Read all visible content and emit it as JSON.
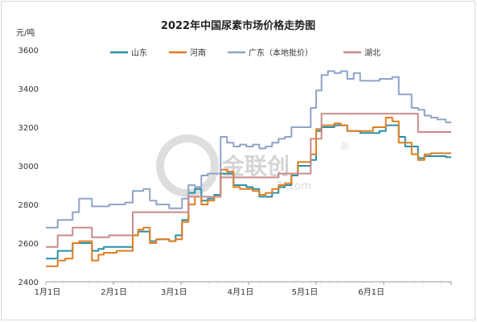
{
  "chart_data": {
    "type": "line",
    "title": "2022年中国尿素市场价格走势图",
    "ylabel": "元/吨",
    "xlabel": "",
    "ylim": [
      2400,
      3600
    ],
    "yticks": [
      2400,
      2600,
      2800,
      3000,
      3200,
      3400,
      3600
    ],
    "xlim": [
      1,
      190
    ],
    "xticks": [
      {
        "label": "1月1日",
        "day": 1
      },
      {
        "label": "2月1日",
        "day": 32
      },
      {
        "label": "3月1日",
        "day": 60
      },
      {
        "label": "4月1日",
        "day": 91
      },
      {
        "label": "5月1日",
        "day": 121
      },
      {
        "label": "6月1日",
        "day": 152
      }
    ],
    "grid": false,
    "legend_position": "top",
    "watermark": {
      "brand": "金联创",
      "site": "3i.com",
      "mark": "®"
    },
    "series": [
      {
        "name": "山东",
        "color": "#2b8fa8",
        "x": [
          1,
          5,
          8,
          12,
          15,
          18,
          21,
          24,
          27,
          29,
          32,
          36,
          40,
          43,
          45,
          48,
          51,
          54,
          57,
          60,
          63,
          66,
          69,
          72,
          75,
          78,
          81,
          84,
          87,
          90,
          93,
          96,
          99,
          102,
          105,
          108,
          111,
          114,
          117,
          120,
          123,
          126,
          128,
          131,
          134,
          137,
          140,
          143,
          146,
          149,
          152,
          155,
          158,
          161,
          164,
          167,
          170,
          173,
          176,
          179,
          182,
          185,
          190
        ],
        "y": [
          2520,
          2520,
          2560,
          2560,
          2600,
          2600,
          2600,
          2560,
          2570,
          2580,
          2580,
          2580,
          2580,
          2640,
          2660,
          2660,
          2610,
          2620,
          2620,
          2610,
          2640,
          2720,
          2860,
          2880,
          2820,
          2830,
          2850,
          2960,
          2960,
          2900,
          2900,
          2890,
          2880,
          2840,
          2840,
          2860,
          2890,
          2900,
          2950,
          3000,
          3000,
          3030,
          3180,
          3200,
          3200,
          3210,
          3210,
          3180,
          3180,
          3170,
          3170,
          3170,
          3180,
          3210,
          3210,
          3150,
          3100,
          3100,
          3040,
          3050,
          3050,
          3050,
          3045
        ]
      },
      {
        "name": "河南",
        "color": "#e07d1f",
        "x": [
          1,
          5,
          8,
          12,
          15,
          18,
          21,
          24,
          27,
          29,
          32,
          36,
          40,
          43,
          45,
          48,
          51,
          54,
          57,
          60,
          63,
          66,
          69,
          72,
          75,
          78,
          81,
          84,
          87,
          90,
          93,
          96,
          99,
          102,
          105,
          108,
          111,
          114,
          117,
          120,
          123,
          126,
          128,
          131,
          134,
          137,
          140,
          143,
          146,
          149,
          152,
          155,
          158,
          161,
          164,
          167,
          170,
          173,
          176,
          179,
          182,
          185,
          190
        ],
        "y": [
          2480,
          2480,
          2510,
          2520,
          2600,
          2610,
          2610,
          2510,
          2540,
          2550,
          2550,
          2560,
          2560,
          2640,
          2670,
          2680,
          2600,
          2620,
          2620,
          2610,
          2620,
          2710,
          2800,
          2840,
          2800,
          2820,
          2840,
          2980,
          2970,
          2890,
          2880,
          2880,
          2870,
          2850,
          2860,
          2880,
          2900,
          2910,
          2960,
          3020,
          3020,
          3060,
          3190,
          3210,
          3210,
          3220,
          3210,
          3180,
          3180,
          3180,
          3180,
          3200,
          3200,
          3250,
          3230,
          3120,
          3120,
          3060,
          3030,
          3060,
          3065,
          3065,
          3065
        ]
      },
      {
        "name": "广东（本地批价）",
        "color": "#8fa3c8",
        "x": [
          1,
          5,
          8,
          12,
          15,
          18,
          21,
          24,
          27,
          29,
          32,
          36,
          40,
          43,
          45,
          48,
          51,
          54,
          57,
          60,
          63,
          66,
          69,
          72,
          75,
          78,
          81,
          84,
          87,
          90,
          93,
          96,
          99,
          102,
          105,
          108,
          111,
          114,
          117,
          120,
          123,
          126,
          128,
          131,
          134,
          137,
          140,
          143,
          146,
          149,
          152,
          155,
          158,
          161,
          164,
          167,
          170,
          173,
          176,
          179,
          182,
          185,
          190
        ],
        "y": [
          2680,
          2680,
          2720,
          2720,
          2760,
          2830,
          2830,
          2790,
          2790,
          2790,
          2800,
          2800,
          2810,
          2870,
          2870,
          2880,
          2820,
          2800,
          2800,
          2780,
          2780,
          2830,
          2900,
          2890,
          2950,
          2960,
          2960,
          3150,
          3120,
          3100,
          3110,
          3100,
          3110,
          3090,
          3100,
          3120,
          3140,
          3150,
          3200,
          3200,
          3200,
          3300,
          3390,
          3470,
          3490,
          3480,
          3490,
          3450,
          3480,
          3440,
          3440,
          3440,
          3450,
          3450,
          3460,
          3370,
          3370,
          3300,
          3290,
          3260,
          3250,
          3240,
          3225
        ]
      },
      {
        "name": "湖北",
        "color": "#c98a8a",
        "x": [
          1,
          5,
          8,
          12,
          15,
          18,
          21,
          24,
          27,
          29,
          32,
          36,
          40,
          43,
          45,
          48,
          51,
          54,
          57,
          60,
          63,
          66,
          69,
          72,
          75,
          78,
          81,
          84,
          87,
          90,
          93,
          96,
          99,
          102,
          105,
          108,
          111,
          114,
          117,
          120,
          123,
          126,
          128,
          131,
          134,
          137,
          140,
          143,
          146,
          149,
          152,
          155,
          158,
          161,
          164,
          167,
          170,
          173,
          176,
          179,
          182,
          185,
          190
        ],
        "y": [
          2580,
          2580,
          2640,
          2640,
          2680,
          2680,
          2680,
          2630,
          2630,
          2630,
          2640,
          2640,
          2640,
          2760,
          2760,
          2760,
          2760,
          2760,
          2760,
          2760,
          2760,
          2760,
          2840,
          2840,
          2840,
          2840,
          2840,
          2940,
          2940,
          2940,
          2940,
          2940,
          2940,
          2940,
          2940,
          2940,
          2960,
          2960,
          2960,
          2960,
          2960,
          3140,
          3140,
          3270,
          3270,
          3270,
          3270,
          3270,
          3270,
          3270,
          3270,
          3270,
          3270,
          3270,
          3270,
          3270,
          3270,
          3270,
          3175,
          3175,
          3175,
          3175,
          3175
        ]
      }
    ]
  }
}
